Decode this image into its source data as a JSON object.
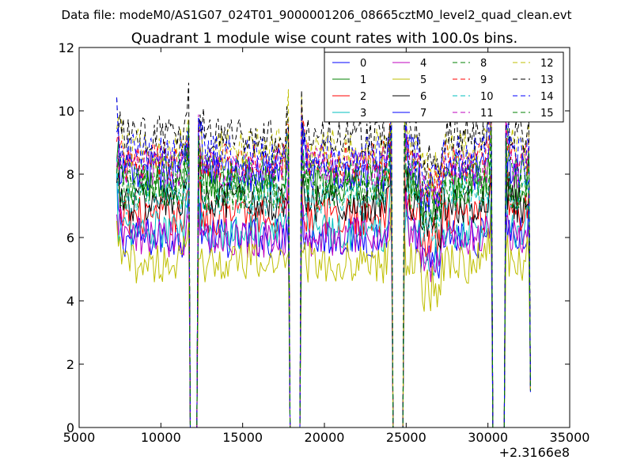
{
  "chart_data": {
    "type": "line",
    "suptitle": "Data file: modeM0/AS1G07_024T01_9000001206_08665cztM0_level2_quad_clean.evt",
    "title": "Quadrant 1 module wise count rates with 100.0s bins.",
    "xlabel": "",
    "ylabel": "",
    "xlim": [
      5000,
      35000
    ],
    "ylim": [
      0,
      12
    ],
    "x_offset_label": "+2.3166e8",
    "x_ticks": [
      5000,
      10000,
      15000,
      20000,
      25000,
      30000,
      35000
    ],
    "y_ticks": [
      0,
      2,
      4,
      6,
      8,
      10,
      12
    ],
    "bin_size_s": 100,
    "legend_position": "top-right",
    "legend_columns": 4,
    "good_time_intervals": [
      [
        7300,
        11700
      ],
      [
        12300,
        17800
      ],
      [
        18600,
        24100
      ],
      [
        24900,
        30200
      ],
      [
        31100,
        32650
      ]
    ],
    "series": [
      {
        "name": "0",
        "color": "#0000ff",
        "style": "solid",
        "mean": 6.0
      },
      {
        "name": "1",
        "color": "#008000",
        "style": "solid",
        "mean": 7.7
      },
      {
        "name": "2",
        "color": "#ff0000",
        "style": "solid",
        "mean": 6.7
      },
      {
        "name": "3",
        "color": "#00bfbf",
        "style": "solid",
        "mean": 6.2
      },
      {
        "name": "4",
        "color": "#bf00bf",
        "style": "solid",
        "mean": 6.0
      },
      {
        "name": "5",
        "color": "#bfbf00",
        "style": "solid",
        "mean": 5.2
      },
      {
        "name": "6",
        "color": "#000000",
        "style": "solid",
        "mean": 7.1
      },
      {
        "name": "7",
        "color": "#0000ff",
        "style": "solid",
        "mean": 8.1
      },
      {
        "name": "8",
        "color": "#008000",
        "style": "dashed",
        "mean": 8.0
      },
      {
        "name": "9",
        "color": "#ff0000",
        "style": "dashed",
        "mean": 8.4
      },
      {
        "name": "10",
        "color": "#00bfbf",
        "style": "dashed",
        "mean": 7.3
      },
      {
        "name": "11",
        "color": "#bf00bf",
        "style": "dashed",
        "mean": 8.2
      },
      {
        "name": "12",
        "color": "#bfbf00",
        "style": "dashed",
        "mean": 8.8
      },
      {
        "name": "13",
        "color": "#000000",
        "style": "dashed",
        "mean": 9.2
      },
      {
        "name": "14",
        "color": "#0000ff",
        "style": "dashed",
        "mean": 8.6
      },
      {
        "name": "15",
        "color": "#008000",
        "style": "dashed",
        "mean": 7.5
      }
    ]
  }
}
